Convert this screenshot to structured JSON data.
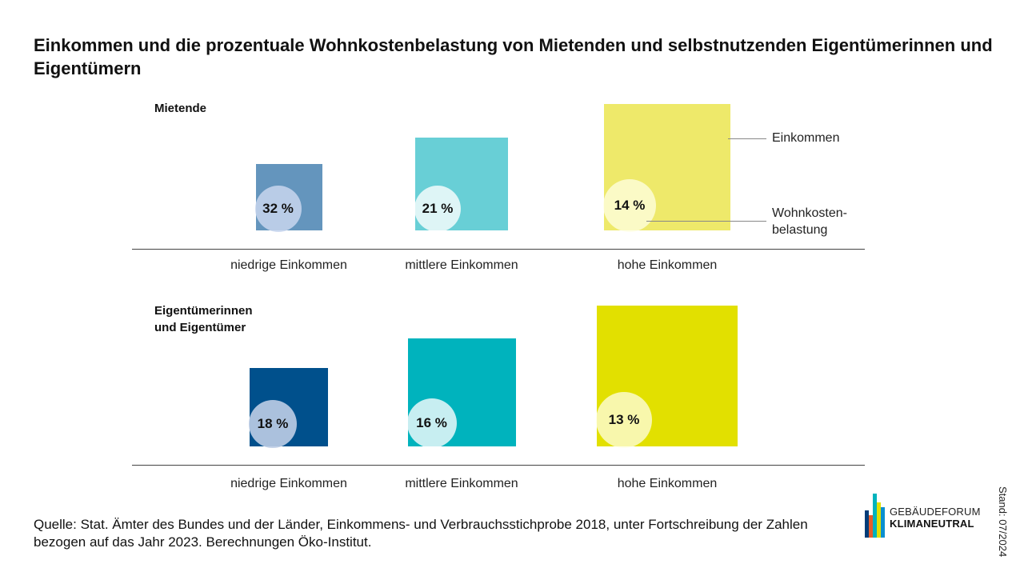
{
  "title": "Einkommen und die prozentuale Wohnkostenbelastung von Mietenden und selbstnutzenden Eigentümerinnen und Eigentümern",
  "legend": {
    "income": "Einkommen",
    "burden_line1": "Wohnkosten-",
    "burden_line2": "belastung"
  },
  "groups": [
    {
      "label_line1": "Mietende",
      "label_line2": ""
    },
    {
      "label_line1": "Eigentümerinnen",
      "label_line2": "und Eigentümer"
    }
  ],
  "chart_data": {
    "type": "proportional-area",
    "categories": [
      "niedrige Einkommen",
      "mittlere Einkommen",
      "hohe Einkommen"
    ],
    "series": [
      {
        "name": "Mietende",
        "values": [
          32,
          21,
          14
        ],
        "colors": [
          "#6495bd",
          "#68cfd6",
          "#eee96a"
        ]
      },
      {
        "name": "Eigentümerinnen und Eigentümer",
        "values": [
          18,
          16,
          13
        ],
        "colors": [
          "#00508c",
          "#00b3bd",
          "#e2e000"
        ]
      }
    ],
    "value_suffix": " %"
  },
  "source": "Quelle: Stat. Ämter des Bundes und der Länder, Einkommens- und Verbrauchsstichprobe 2018, unter Fortschreibung der Zahlen bezogen auf das Jahr 2023. Berechnungen Öko-Institut.",
  "stand": "Stand: 07/2024",
  "logo": {
    "line1": "GEBÄUDEFORUM",
    "line2": "KLIMANEUTRAL",
    "colors": [
      "#003c78",
      "#e85d2a",
      "#00b3bd",
      "#e2e000",
      "#0a8fd0"
    ]
  }
}
